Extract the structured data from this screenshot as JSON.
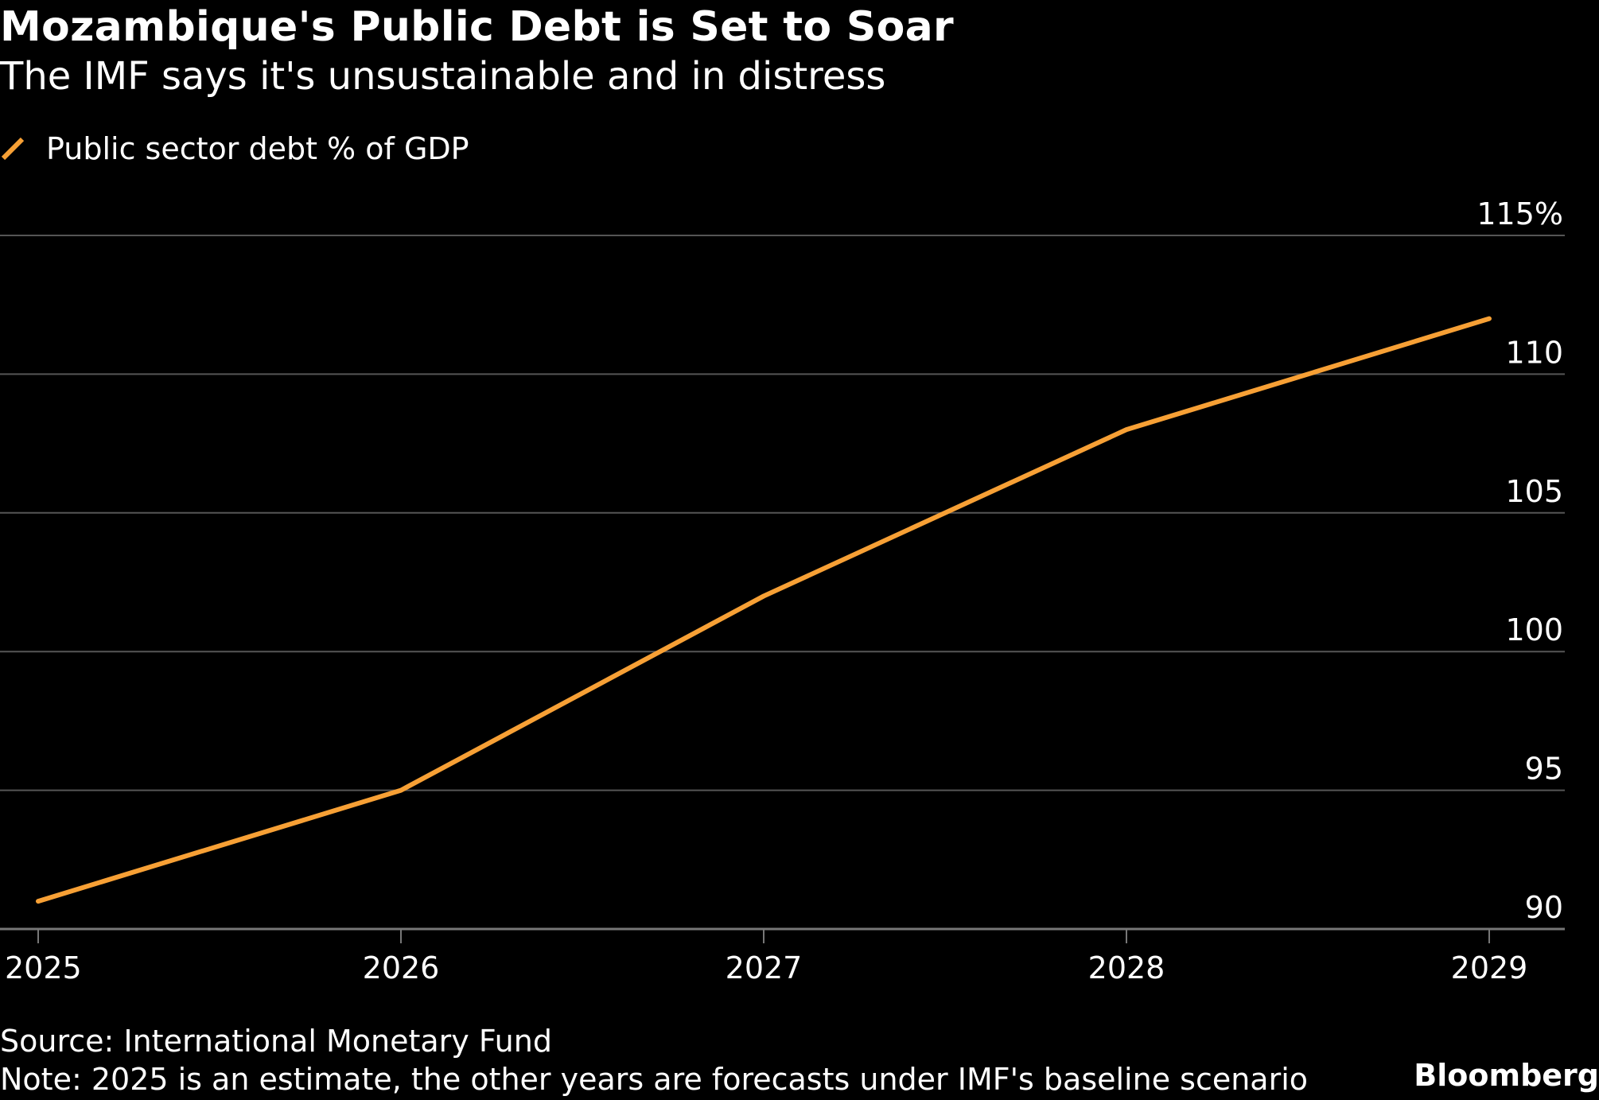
{
  "title": "Mozambique's Public Debt is Set to Soar",
  "subtitle": "The IMF says it's unsustainable and in distress",
  "source": "Source: International Monetary Fund",
  "note": "Note: 2025 is an estimate, the other years are forecasts under IMF's baseline scenario",
  "brand": "Bloomberg",
  "colors": {
    "background": "#000000",
    "text": "#ffffff",
    "gridline": "#555555",
    "series": "#f7a035"
  },
  "chart_data": {
    "type": "line",
    "x": [
      "2025",
      "2026",
      "2027",
      "2028",
      "2029"
    ],
    "series": [
      {
        "name": "Public sector debt % of GDP",
        "values": [
          91.0,
          95.0,
          102.0,
          108.0,
          112.0
        ]
      }
    ],
    "ylim": [
      90,
      115
    ],
    "yticks": [
      90,
      95,
      100,
      105,
      110,
      115
    ],
    "ytick_labels": [
      "90",
      "95",
      "100",
      "105",
      "110",
      "115%"
    ],
    "y_axis_side": "right",
    "grid": true,
    "legend_position": "top-left"
  }
}
